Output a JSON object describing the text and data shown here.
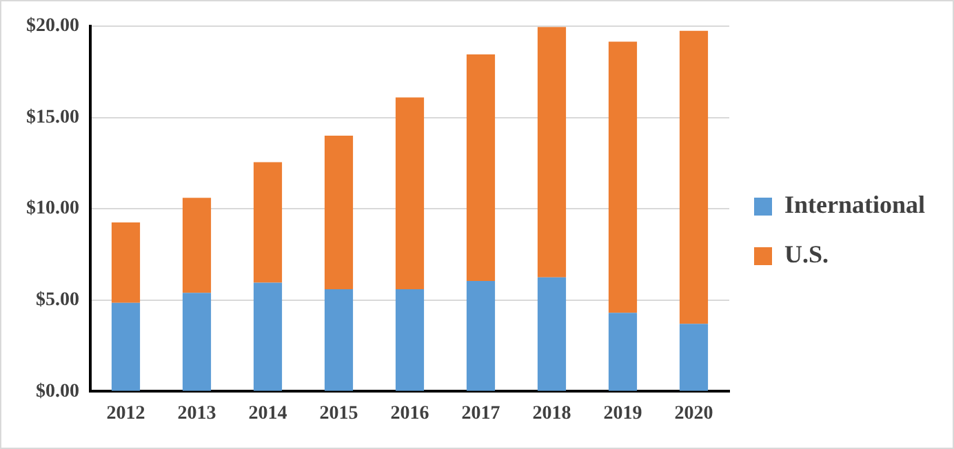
{
  "chart_data": {
    "type": "bar",
    "stacked": true,
    "categories": [
      "2012",
      "2013",
      "2014",
      "2015",
      "2016",
      "2017",
      "2018",
      "2019",
      "2020"
    ],
    "series": [
      {
        "name": "International",
        "color": "#5b9bd5",
        "values": [
          4.85,
          5.4,
          5.95,
          5.6,
          5.6,
          6.05,
          6.25,
          4.3,
          3.7
        ]
      },
      {
        "name": "U.S.",
        "color": "#ed7d31",
        "values": [
          4.4,
          5.2,
          6.6,
          8.4,
          10.5,
          12.4,
          13.7,
          14.85,
          16.05
        ]
      }
    ],
    "ylim": [
      0,
      20
    ],
    "yticks": [
      {
        "value": 0,
        "label": "$0.00"
      },
      {
        "value": 5,
        "label": "$5.00"
      },
      {
        "value": 10,
        "label": "$10.00"
      },
      {
        "value": 15,
        "label": "$15.00"
      },
      {
        "value": 20,
        "label": "$20.00"
      }
    ],
    "grid": "y",
    "legend": "right"
  }
}
